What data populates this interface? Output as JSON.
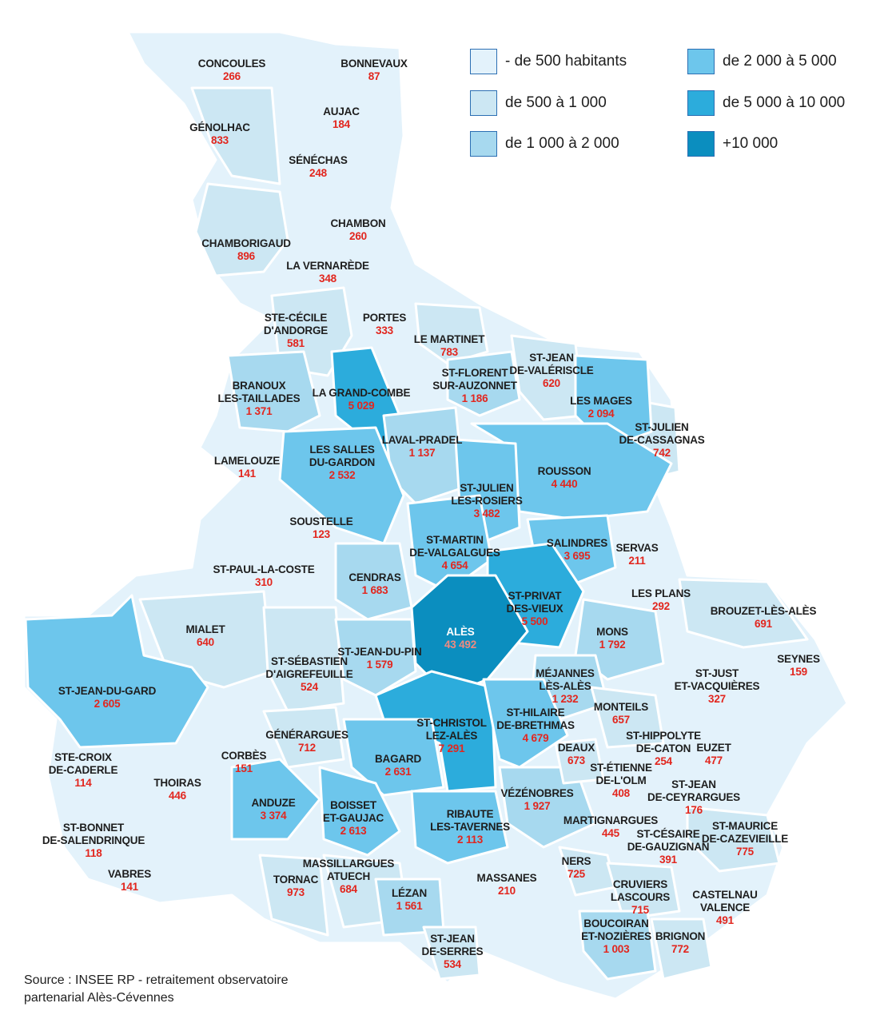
{
  "legend": {
    "items": [
      {
        "label": "- de 500 habitants",
        "color": "#e3f2fb"
      },
      {
        "label": "de 500 à 1 000",
        "color": "#cce7f3"
      },
      {
        "label": "de 1 000 à 2 000",
        "color": "#a7d9ef"
      },
      {
        "label": "de 2 000 à 5 000",
        "color": "#6dc6ec"
      },
      {
        "label": "de 5 000 à 10 000",
        "color": "#2cacdc"
      },
      {
        "label": "+10 000",
        "color": "#0b8ebf"
      }
    ]
  },
  "source": {
    "line1": "Source : INSEE RP - retraitement observatoire",
    "line2": "partenarial Alès-Cévennes"
  },
  "communes": [
    {
      "name": "CONCOULES",
      "value": "266",
      "cls": 0
    },
    {
      "name": "BONNEVAUX",
      "value": "87",
      "cls": 0
    },
    {
      "name": "AUJAC",
      "value": "184",
      "cls": 0
    },
    {
      "name": "GÉNOLHAC",
      "value": "833",
      "cls": 1
    },
    {
      "name": "SÉNÉCHAS",
      "value": "248",
      "cls": 0
    },
    {
      "name": "CHAMBON",
      "value": "260",
      "cls": 0
    },
    {
      "name": "CHAMBORIGAUD",
      "value": "896",
      "cls": 1
    },
    {
      "name": "LA VERNARÈDE",
      "value": "348",
      "cls": 0
    },
    {
      "name": "PORTES",
      "value": "333",
      "cls": 0
    },
    {
      "name": "STE-CÉCILE\nD'ANDORGE",
      "value": "581",
      "cls": 1
    },
    {
      "name": "LE MARTINET",
      "value": "783",
      "cls": 1
    },
    {
      "name": "ST-JEAN\nDE-VALÉRISCLE",
      "value": "620",
      "cls": 1
    },
    {
      "name": "ST-FLORENT\nSUR-AUZONNET",
      "value": "1 186",
      "cls": 2
    },
    {
      "name": "BRANOUX\nLES-TAILLADES",
      "value": "1 371",
      "cls": 2
    },
    {
      "name": "LA GRAND-COMBE",
      "value": "5 029",
      "cls": 4
    },
    {
      "name": "LES MAGES",
      "value": "2 094",
      "cls": 3
    },
    {
      "name": "ST-JULIEN\nDE-CASSAGNAS",
      "value": "742",
      "cls": 1
    },
    {
      "name": "LAVAL-PRADEL",
      "value": "1 137",
      "cls": 2
    },
    {
      "name": "LES SALLES\nDU-GARDON",
      "value": "2 532",
      "cls": 3
    },
    {
      "name": "LAMELOUZE",
      "value": "141",
      "cls": 0
    },
    {
      "name": "ROUSSON",
      "value": "4 440",
      "cls": 3
    },
    {
      "name": "ST-JULIEN\nLES-ROSIERS",
      "value": "3 482",
      "cls": 3
    },
    {
      "name": "SOUSTELLE",
      "value": "123",
      "cls": 0
    },
    {
      "name": "ST-MARTIN\nDE-VALGALGUES",
      "value": "4 654",
      "cls": 3
    },
    {
      "name": "SALINDRES",
      "value": "3 695",
      "cls": 3
    },
    {
      "name": "SERVAS",
      "value": "211",
      "cls": 0
    },
    {
      "name": "ST-PAUL-LA-COSTE",
      "value": "310",
      "cls": 0
    },
    {
      "name": "CENDRAS",
      "value": "1 683",
      "cls": 2
    },
    {
      "name": "ST-PRIVAT\nDES-VIEUX",
      "value": "5 500",
      "cls": 4
    },
    {
      "name": "LES PLANS",
      "value": "292",
      "cls": 0
    },
    {
      "name": "BROUZET-LÈS-ALÈS",
      "value": "691",
      "cls": 1
    },
    {
      "name": "ALÈS",
      "value": "43 492",
      "cls": 5
    },
    {
      "name": "MIALET",
      "value": "640",
      "cls": 1
    },
    {
      "name": "MONS",
      "value": "1 792",
      "cls": 2
    },
    {
      "name": "ST-SÉBASTIEN\nD'AIGREFEUILLE",
      "value": "524",
      "cls": 1
    },
    {
      "name": "ST-JEAN-DU-PIN",
      "value": "1 579",
      "cls": 2
    },
    {
      "name": "SEYNES",
      "value": "159",
      "cls": 0
    },
    {
      "name": "ST-JUST\nET-VACQUIÈRES",
      "value": "327",
      "cls": 0
    },
    {
      "name": "MÉJANNES\nLÈS-ALÈS",
      "value": "1 232",
      "cls": 2
    },
    {
      "name": "ST-JEAN-DU-GARD",
      "value": "2 605",
      "cls": 3
    },
    {
      "name": "MONTEILS",
      "value": "657",
      "cls": 1
    },
    {
      "name": "ST-CHRISTOL\nLEZ-ALÈS",
      "value": "7 291",
      "cls": 4
    },
    {
      "name": "ST-HILAIRE\nDE-BRETHMAS",
      "value": "4 679",
      "cls": 3
    },
    {
      "name": "GÉNÉRARGUES",
      "value": "712",
      "cls": 1
    },
    {
      "name": "ST-HIPPOLYTE\nDE-CATON",
      "value": "254",
      "cls": 0
    },
    {
      "name": "EUZET",
      "value": "477",
      "cls": 0
    },
    {
      "name": "DEAUX",
      "value": "673",
      "cls": 1
    },
    {
      "name": "CORBÈS",
      "value": "151",
      "cls": 0
    },
    {
      "name": "STE-CROIX\nDE-CADERLE",
      "value": "114",
      "cls": 0
    },
    {
      "name": "BAGARD",
      "value": "2 631",
      "cls": 3
    },
    {
      "name": "THOIRAS",
      "value": "446",
      "cls": 0
    },
    {
      "name": "ST-ÉTIENNE\nDE-L'OLM",
      "value": "408",
      "cls": 0
    },
    {
      "name": "VÉZÉNOBRES",
      "value": "1 927",
      "cls": 2
    },
    {
      "name": "ST-JEAN\nDE-CEYRARGUES",
      "value": "176",
      "cls": 0
    },
    {
      "name": "ANDUZE",
      "value": "3 374",
      "cls": 3
    },
    {
      "name": "BOISSET\nET-GAUJAC",
      "value": "2 613",
      "cls": 3
    },
    {
      "name": "RIBAUTE\nLES-TAVERNES",
      "value": "2 113",
      "cls": 3
    },
    {
      "name": "MARTIGNARGUES",
      "value": "445",
      "cls": 0
    },
    {
      "name": "ST-MAURICE\nDE-CAZEVIEILLE",
      "value": "775",
      "cls": 1
    },
    {
      "name": "ST-BONNET\nDE-SALENDRINQUE",
      "value": "118",
      "cls": 0
    },
    {
      "name": "ST-CÉSAIRE\nDE-GAUZIGNAN",
      "value": "391",
      "cls": 0
    },
    {
      "name": "MASSILLARGUES\nATUECH",
      "value": "684",
      "cls": 1
    },
    {
      "name": "NERS",
      "value": "725",
      "cls": 1
    },
    {
      "name": "VABRES",
      "value": "141",
      "cls": 0
    },
    {
      "name": "TORNAC",
      "value": "973",
      "cls": 1
    },
    {
      "name": "MASSANES",
      "value": "210",
      "cls": 0
    },
    {
      "name": "LÉZAN",
      "value": "1 561",
      "cls": 2
    },
    {
      "name": "CRUVIERS\nLASCOURS",
      "value": "715",
      "cls": 1
    },
    {
      "name": "CASTELNAU\nVALENCE",
      "value": "491",
      "cls": 0
    },
    {
      "name": "BOUCOIRAN\nET-NOZIÈRES",
      "value": "1 003",
      "cls": 2
    },
    {
      "name": "BRIGNON",
      "value": "772",
      "cls": 1
    },
    {
      "name": "ST-JEAN\nDE-SERRES",
      "value": "534",
      "cls": 1
    }
  ]
}
